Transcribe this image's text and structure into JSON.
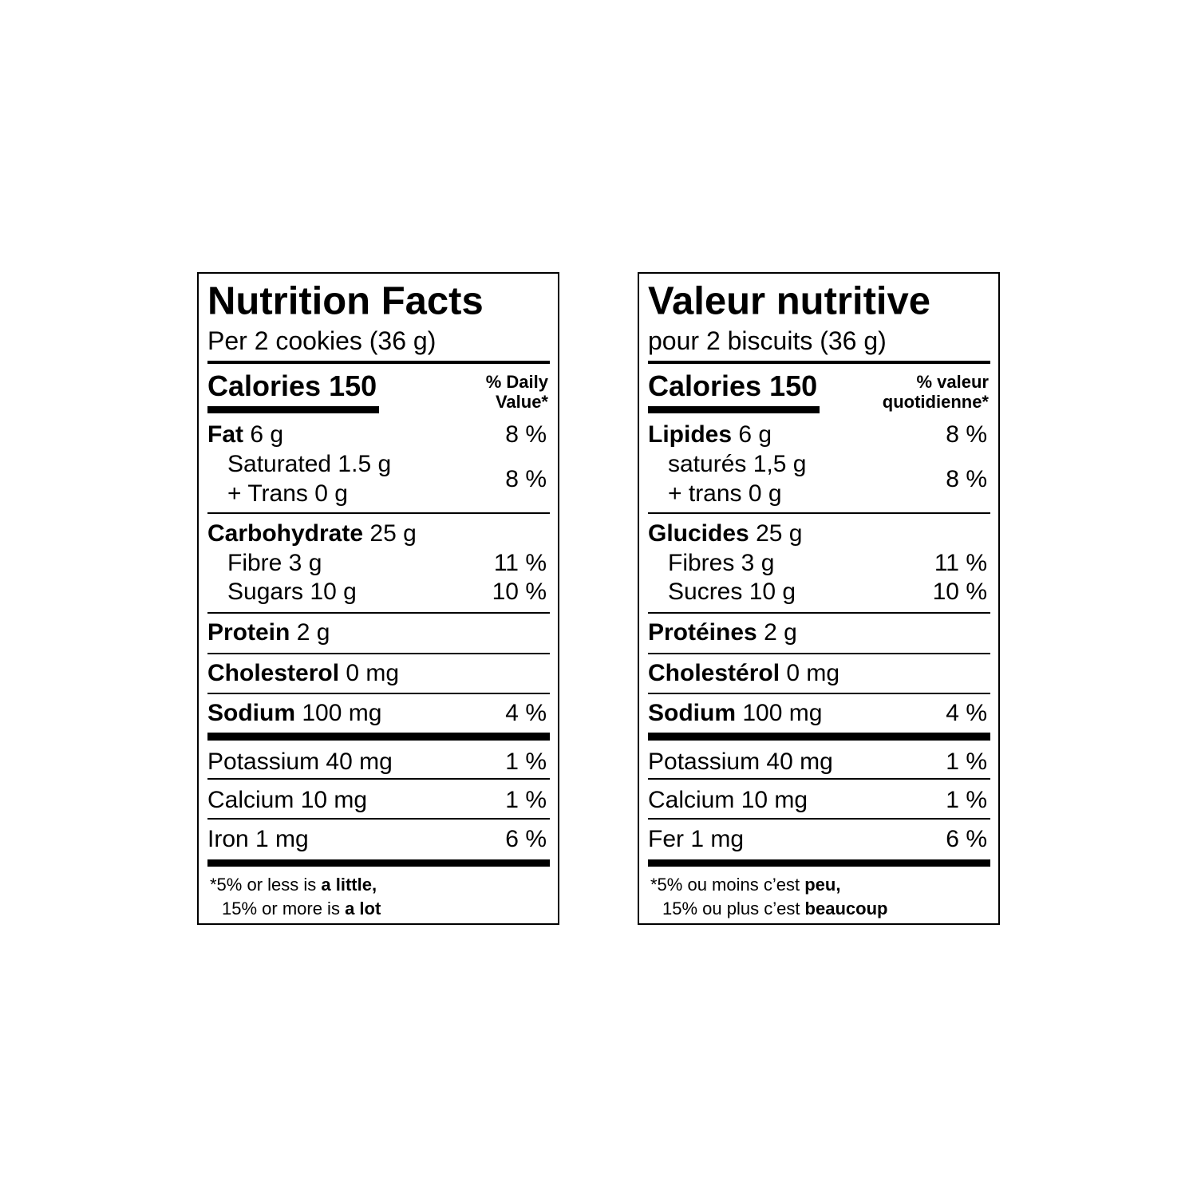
{
  "labels": [
    {
      "title": "Nutrition Facts",
      "serving": "Per 2 cookies (36 g)",
      "calories": "Calories 150",
      "dv_header": [
        "% Daily",
        "Value*"
      ],
      "rows": [
        {
          "bold": "Fat",
          "text": "6 g",
          "dv": "8 %"
        },
        {
          "lines": [
            "Saturated 1.5 g",
            "+ Trans 0 g"
          ],
          "dv": "8 %"
        },
        {
          "bold": "Carbohydrate",
          "text": "25 g"
        },
        {
          "text": "Fibre 3 g",
          "dv": "11 %"
        },
        {
          "text": "Sugars 10 g",
          "dv": "10 %"
        },
        {
          "bold": "Protein",
          "text": "2 g"
        },
        {
          "bold": "Cholesterol",
          "text": "0 mg"
        },
        {
          "bold": "Sodium",
          "text": "100 mg",
          "dv": "4 %"
        },
        {
          "text": "Potassium 40 mg",
          "dv": "1 %"
        },
        {
          "text": "Calcium 10 mg",
          "dv": "1 %"
        },
        {
          "text": "Iron 1 mg",
          "dv": "6 %"
        }
      ],
      "footnote": [
        [
          "*5% or less is ",
          "a little,"
        ],
        [
          "15% or more is ",
          "a lot"
        ]
      ]
    },
    {
      "title": "Valeur nutritive",
      "serving": "pour 2 biscuits (36 g)",
      "calories": "Calories 150",
      "dv_header": [
        "% valeur",
        "quotidienne*"
      ],
      "rows": [
        {
          "bold": "Lipides",
          "text": "6 g",
          "dv": "8 %"
        },
        {
          "lines": [
            "saturés 1,5 g",
            "+ trans 0 g"
          ],
          "dv": "8 %"
        },
        {
          "bold": "Glucides",
          "text": "25 g"
        },
        {
          "text": "Fibres 3 g",
          "dv": "11 %"
        },
        {
          "text": "Sucres 10 g",
          "dv": "10 %"
        },
        {
          "bold": "Protéines",
          "text": "2 g"
        },
        {
          "bold": "Cholestérol",
          "text": "0 mg"
        },
        {
          "bold": "Sodium",
          "text": "100 mg",
          "dv": "4 %"
        },
        {
          "text": "Potassium 40 mg",
          "dv": "1 %"
        },
        {
          "text": "Calcium 10 mg",
          "dv": "1 %"
        },
        {
          "text": "Fer 1 mg",
          "dv": "6 %"
        }
      ],
      "footnote": [
        [
          "*5% ou moins c’est ",
          "peu,"
        ],
        [
          "15% ou plus c’est ",
          "beaucoup"
        ]
      ]
    }
  ]
}
